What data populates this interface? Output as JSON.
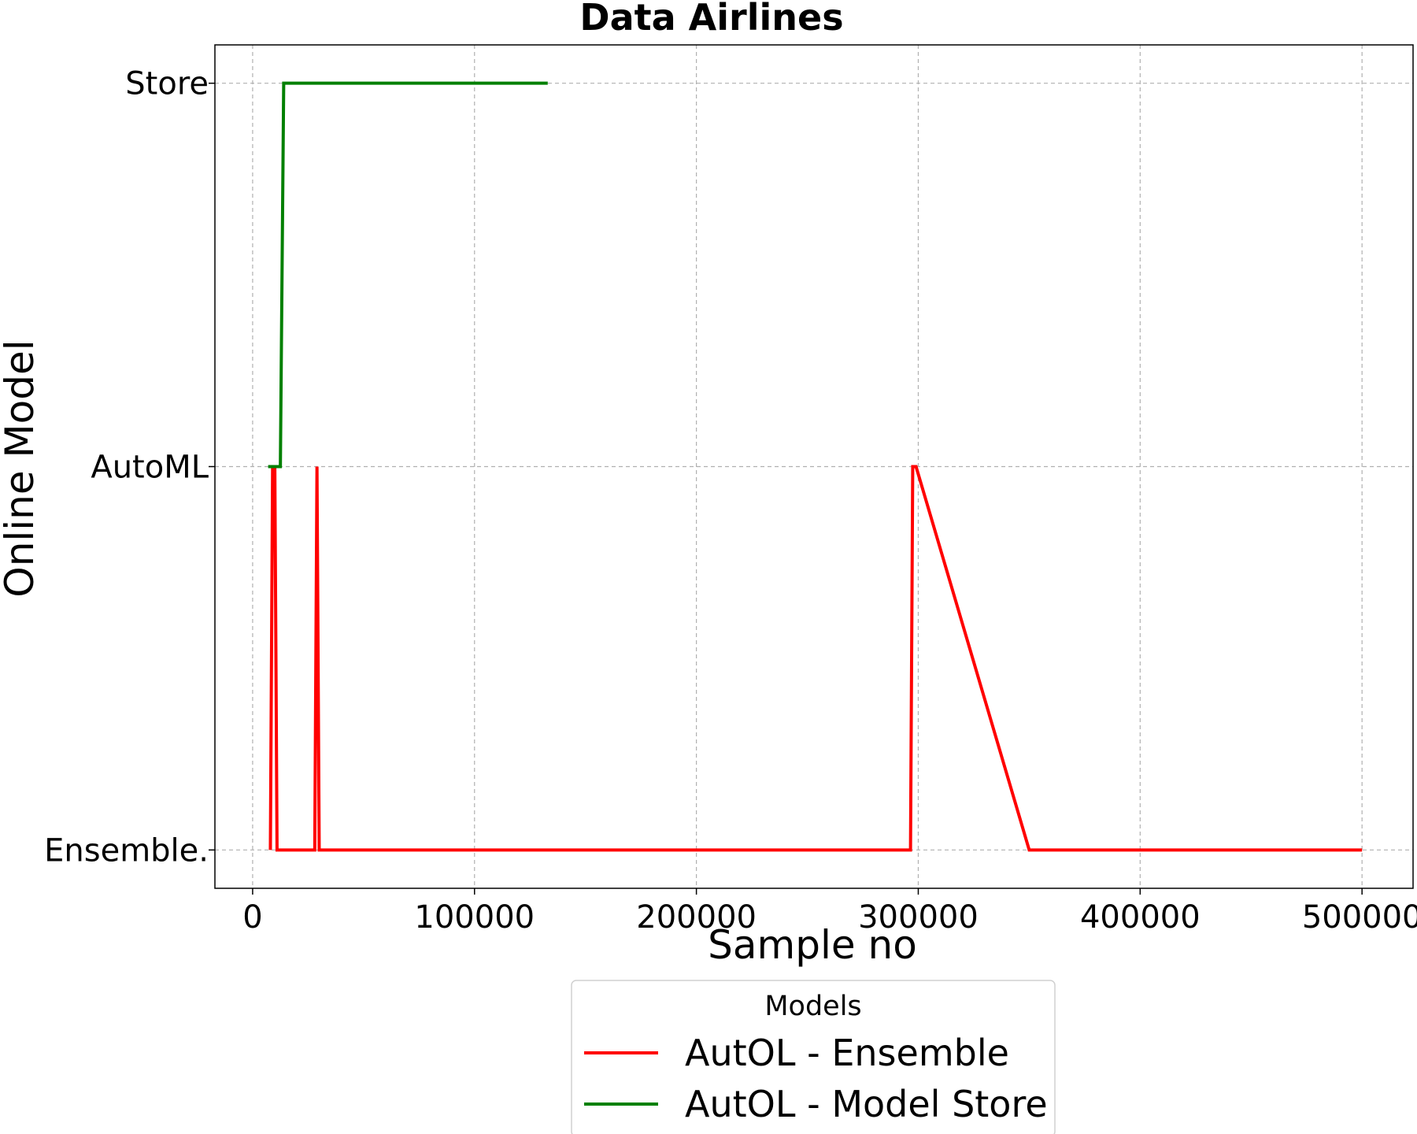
{
  "chart_data": {
    "type": "line",
    "title": "Data Airlines",
    "xlabel": "Sample no",
    "ylabel": "Online Model",
    "xlim": [
      -17000,
      523000
    ],
    "ylim": [
      -0.1,
      2.1
    ],
    "xticks": [
      {
        "value": 0,
        "label": "0"
      },
      {
        "value": 100000,
        "label": "100000"
      },
      {
        "value": 200000,
        "label": "200000"
      },
      {
        "value": 300000,
        "label": "300000"
      },
      {
        "value": 400000,
        "label": "400000"
      },
      {
        "value": 500000,
        "label": "500000"
      }
    ],
    "yticks": [
      {
        "value": 0,
        "label": "Ensemble."
      },
      {
        "value": 1,
        "label": "AutoML"
      },
      {
        "value": 2,
        "label": "Store"
      }
    ],
    "grid": true,
    "legend": {
      "title": "Models",
      "placement": "below plot, center"
    },
    "series": [
      {
        "name": "AutOL - Ensemble",
        "color": "#ff0000",
        "x": [
          8000,
          9000,
          10000,
          11000,
          12000,
          28000,
          29000,
          30000,
          31000,
          296500,
          297500,
          299000,
          350000,
          500000
        ],
        "y": [
          0,
          1,
          1,
          0,
          0,
          0,
          1,
          0,
          0,
          0,
          1,
          1,
          0,
          0
        ]
      },
      {
        "name": "AutOL - Model Store",
        "color": "#008000",
        "x": [
          7000,
          12500,
          14000,
          15000,
          17000,
          133000
        ],
        "y": [
          1,
          1,
          2,
          2,
          2,
          2
        ]
      }
    ]
  }
}
